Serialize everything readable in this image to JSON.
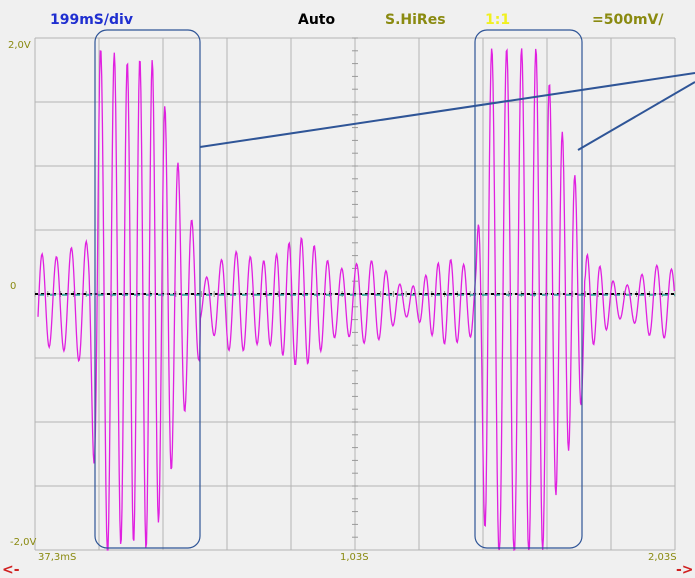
{
  "header": {
    "timebase": "199mS/div",
    "mode": "Auto",
    "acquisition": "S.HiRes",
    "probe": "1:1",
    "volts": "=500mV/"
  },
  "y_labels": {
    "top": "2,0V",
    "zero": "0",
    "bottom": "-2,0V"
  },
  "x_labels": [
    "37,3mS",
    "1,03S",
    "2,03S"
  ],
  "nav": {
    "left": "<-",
    "right": "->"
  }
}
